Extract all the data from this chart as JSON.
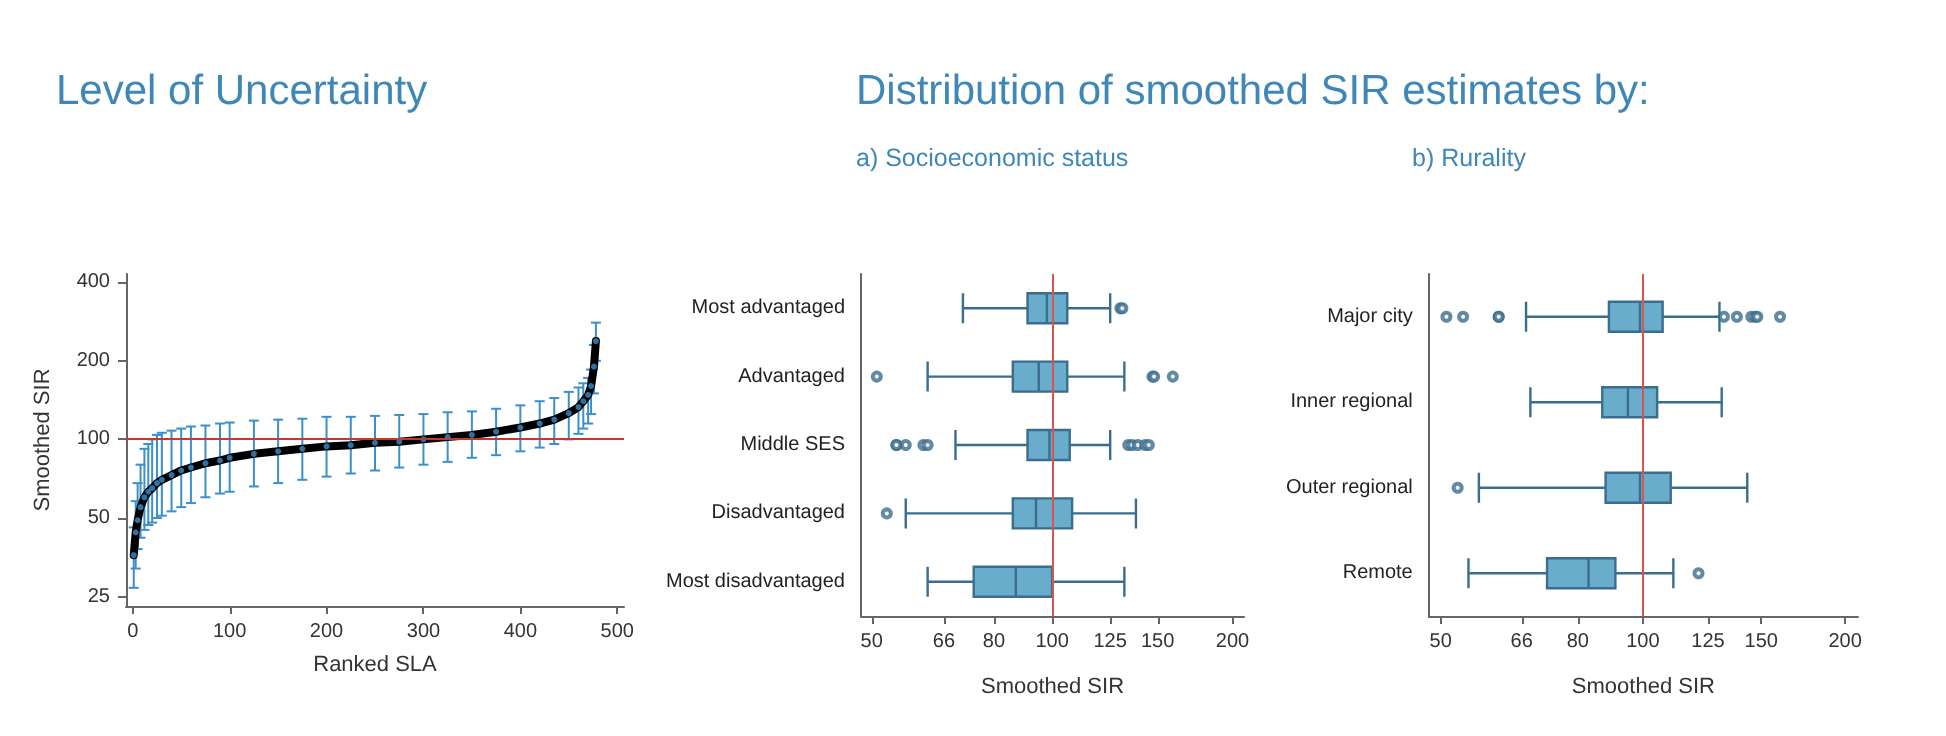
{
  "chart_data": [
    {
      "type": "line",
      "title": "Level of Uncertainty",
      "xlabel": "Ranked SLA",
      "ylabel": "Smoothed SIR",
      "log": "y",
      "grid": false,
      "xlim": [
        -7,
        507
      ],
      "xticks": [
        0,
        100,
        200,
        300,
        400,
        500
      ],
      "ylim": [
        23,
        430
      ],
      "yticks": [
        25,
        50,
        100,
        200,
        400
      ],
      "x": [
        1,
        3,
        5,
        8,
        12,
        16,
        20,
        25,
        30,
        40,
        50,
        60,
        75,
        90,
        100,
        125,
        150,
        175,
        200,
        225,
        250,
        275,
        300,
        325,
        350,
        375,
        400,
        420,
        435,
        450,
        460,
        465,
        470,
        473,
        476,
        478
      ],
      "series": [
        {
          "type": "scatter",
          "color": "#3b8fca",
          "values": [
            36,
            44,
            49,
            55,
            60,
            63,
            65,
            68,
            70,
            73,
            76,
            78,
            81,
            83,
            85,
            88,
            90,
            92,
            94,
            95,
            97,
            98,
            100,
            102,
            104,
            107,
            111,
            115,
            119,
            126,
            133,
            140,
            148,
            160,
            190,
            238
          ],
          "errors": [
            [
              27,
              46
            ],
            [
              32,
              58
            ],
            [
              38,
              68
            ],
            [
              42,
              80
            ],
            [
              45,
              92
            ],
            [
              47,
              96
            ],
            [
              48,
              100
            ],
            [
              50,
              104
            ],
            [
              51,
              106
            ],
            [
              53,
              108
            ],
            [
              55,
              110
            ],
            [
              57,
              112
            ],
            [
              60,
              113
            ],
            [
              62,
              115
            ],
            [
              63,
              116
            ],
            [
              66,
              118
            ],
            [
              68,
              119
            ],
            [
              70,
              120
            ],
            [
              72,
              122
            ],
            [
              74,
              122
            ],
            [
              76,
              123
            ],
            [
              78,
              124
            ],
            [
              80,
              125
            ],
            [
              82,
              127
            ],
            [
              85,
              128
            ],
            [
              87,
              131
            ],
            [
              90,
              135
            ],
            [
              93,
              140
            ],
            [
              96,
              144
            ],
            [
              100,
              152
            ],
            [
              105,
              158
            ],
            [
              110,
              164
            ],
            [
              115,
              172
            ],
            [
              125,
              185
            ],
            [
              150,
              230
            ],
            [
              200,
              280
            ]
          ]
        },
        {
          "type": "line",
          "color": "#000000",
          "values": [
            36,
            44,
            49,
            55,
            60,
            63,
            65,
            68,
            70,
            73,
            76,
            78,
            81,
            83,
            85,
            88,
            90,
            92,
            94,
            95,
            97,
            98,
            100,
            102,
            104,
            107,
            111,
            115,
            119,
            126,
            133,
            140,
            148,
            160,
            190,
            238
          ]
        }
      ],
      "ref_lines": [
        {
          "axis": "y",
          "value": 100,
          "color": "#c0392b"
        }
      ]
    },
    {
      "type": "box",
      "title": "Distribution of smoothed SIR estimates by:",
      "subtitle": "a) Socioeconomic status",
      "xlabel": "Smoothed SIR",
      "orientation": "horizontal",
      "log": "x",
      "grid": false,
      "categories": [
        "Most advantaged",
        "Advantaged",
        "Middle SES",
        "Disadvantaged",
        "Most disadvantaged"
      ],
      "xlim": [
        48,
        209
      ],
      "xticks": [
        50,
        66,
        80,
        100,
        125,
        150,
        200
      ],
      "series": [
        {
          "color": "#6aaccc",
          "boxes": [
            {
              "low": 71,
              "q1": 91,
              "median": 98,
              "q3": 106,
              "high": 125,
              "outliers": [
                130,
                131
              ]
            },
            {
              "low": 62,
              "q1": 86,
              "median": 95,
              "q3": 106,
              "high": 132,
              "outliers": [
                51,
                147,
                148,
                159
              ]
            },
            {
              "low": 69,
              "q1": 91,
              "median": 99,
              "q3": 107,
              "high": 125,
              "outliers": [
                55,
                55,
                57,
                61,
                62,
                134,
                136,
                139,
                143,
                145
              ]
            },
            {
              "low": 57,
              "q1": 86,
              "median": 94,
              "q3": 108,
              "high": 138,
              "outliers": [
                53
              ]
            },
            {
              "low": 62,
              "q1": 74,
              "median": 87,
              "q3": 100,
              "high": 132
            }
          ]
        }
      ],
      "ref_lines": [
        {
          "axis": "x",
          "value": 100,
          "color": "#d9534f"
        }
      ]
    },
    {
      "type": "box",
      "subtitle": "b) Rurality",
      "xlabel": "Smoothed SIR",
      "orientation": "horizontal",
      "log": "x",
      "grid": false,
      "categories": [
        "Major city",
        "Inner regional",
        "Outer regional",
        "Remote"
      ],
      "xlim": [
        48,
        209
      ],
      "xticks": [
        50,
        66,
        80,
        100,
        125,
        150,
        200
      ],
      "series": [
        {
          "color": "#6aaccc",
          "boxes": [
            {
              "low": 67,
              "q1": 89,
              "median": 99,
              "q3": 107,
              "high": 130,
              "outliers": [
                51,
                54,
                61,
                61,
                132,
                138,
                145,
                147,
                148,
                160
              ]
            },
            {
              "low": 68,
              "q1": 87,
              "median": 95,
              "q3": 105,
              "high": 131
            },
            {
              "low": 57,
              "q1": 88,
              "median": 99,
              "q3": 110,
              "high": 143,
              "outliers": [
                53
              ]
            },
            {
              "low": 55,
              "q1": 72,
              "median": 83,
              "q3": 91,
              "high": 111,
              "outliers": [
                121
              ]
            }
          ]
        }
      ],
      "ref_lines": [
        {
          "axis": "x",
          "value": 100,
          "color": "#d9534f"
        }
      ]
    }
  ]
}
